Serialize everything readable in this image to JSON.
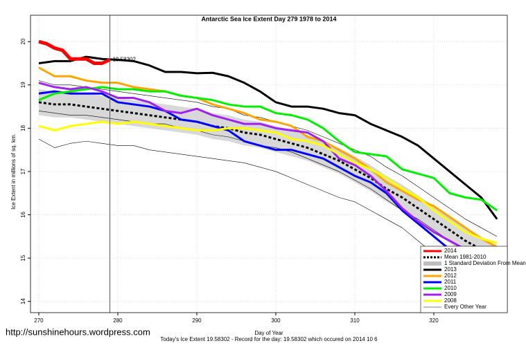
{
  "chart_data": {
    "type": "line",
    "title": "Antarctic Sea Ice Extent Day 279 1978 to 2014",
    "x_label": "Day of Year",
    "y_label": "Ice Extent in millions of sq. km.",
    "footnote": "Today's Ice Extent  19.58302  - Record for the day: 19.58302 which occured on 2014 10 6",
    "watermark": "http://sunshinehours.wordpress.com",
    "annotation": "19.58302",
    "vline": 279,
    "xlim": [
      268.95,
      329.3
    ],
    "ylim": [
      13.74,
      20.61
    ],
    "xticks": [
      270,
      280,
      290,
      300,
      310,
      320
    ],
    "yticks": [
      14,
      15,
      16,
      17,
      18,
      19,
      20
    ],
    "grid": true,
    "legend": "bottom-right",
    "x": [
      270,
      272,
      274,
      276,
      278,
      280,
      282,
      284,
      286,
      288,
      290,
      292,
      294,
      296,
      298,
      300,
      302,
      304,
      306,
      308,
      310,
      312,
      314,
      316,
      318,
      320,
      322,
      324,
      326,
      328
    ],
    "series": [
      {
        "name": "2014",
        "color": "#ff0000",
        "width": 5,
        "x": [
          270,
          271,
          272,
          273,
          274,
          275,
          276,
          277,
          278,
          279
        ],
        "values": [
          20.0,
          19.95,
          19.85,
          19.8,
          19.6,
          19.6,
          19.6,
          19.5,
          19.5,
          19.58302
        ]
      },
      {
        "name": "Mean 1981-2010",
        "color": "#000000",
        "width": 3,
        "dash": true,
        "values": [
          18.6,
          18.55,
          18.55,
          18.5,
          18.45,
          18.4,
          18.35,
          18.3,
          18.25,
          18.2,
          18.15,
          18.05,
          18.0,
          17.9,
          17.85,
          17.75,
          17.65,
          17.55,
          17.4,
          17.25,
          17.05,
          16.85,
          16.6,
          16.4,
          16.15,
          15.9,
          15.65,
          15.4,
          15.2,
          15.0
        ]
      },
      {
        "name": "2013",
        "color": "#000000",
        "width": 3,
        "values": [
          19.5,
          19.55,
          19.55,
          19.65,
          19.6,
          19.58,
          19.55,
          19.45,
          19.3,
          19.3,
          19.27,
          19.28,
          19.2,
          19.05,
          18.85,
          18.6,
          18.5,
          18.5,
          18.45,
          18.35,
          18.3,
          18.1,
          17.95,
          17.8,
          17.6,
          17.3,
          17.0,
          16.7,
          16.4,
          15.9
        ]
      },
      {
        "name": "2012",
        "color": "#ffa500",
        "width": 3,
        "values": [
          19.4,
          19.2,
          19.2,
          19.1,
          19.05,
          19.05,
          18.95,
          18.9,
          18.85,
          18.75,
          18.7,
          18.55,
          18.45,
          18.35,
          18.2,
          18.15,
          18.05,
          17.8,
          17.7,
          17.5,
          17.3,
          17.05,
          16.75,
          16.55,
          16.35,
          16.2,
          15.95,
          15.7,
          15.45,
          15.25
        ]
      },
      {
        "name": "2011",
        "color": "#0000ff",
        "width": 3,
        "values": [
          18.8,
          18.85,
          18.8,
          18.8,
          18.8,
          18.6,
          18.55,
          18.5,
          18.4,
          18.2,
          18.15,
          18.05,
          17.95,
          17.7,
          17.6,
          17.5,
          17.5,
          17.4,
          17.3,
          17.1,
          16.9,
          16.75,
          16.5,
          16.1,
          15.8,
          15.5,
          15.2,
          15.0,
          14.8,
          14.55
        ]
      },
      {
        "name": "2010",
        "color": "#00ee00",
        "width": 3,
        "values": [
          18.65,
          18.8,
          18.85,
          18.9,
          18.95,
          18.9,
          18.9,
          18.85,
          18.85,
          18.75,
          18.7,
          18.65,
          18.55,
          18.5,
          18.5,
          18.35,
          18.3,
          18.2,
          18.0,
          17.7,
          17.45,
          17.4,
          17.35,
          17.05,
          16.95,
          16.85,
          16.5,
          16.4,
          16.35,
          16.1
        ]
      },
      {
        "name": "2009",
        "color": "#a020f0",
        "width": 3,
        "values": [
          19.05,
          18.95,
          18.9,
          18.95,
          18.85,
          18.7,
          18.7,
          18.6,
          18.4,
          18.35,
          18.45,
          18.3,
          18.2,
          18.1,
          18.1,
          18.0,
          17.95,
          17.9,
          17.7,
          17.3,
          17.15,
          16.9,
          16.55,
          16.15,
          15.85,
          15.6,
          15.4,
          15.2,
          15.05,
          14.85
        ]
      },
      {
        "name": "2008",
        "color": "#ffff00",
        "width": 3,
        "values": [
          18.05,
          17.95,
          18.05,
          18.1,
          18.15,
          18.1,
          18.15,
          18.1,
          18.05,
          18.0,
          17.95,
          17.95,
          18.0,
          18.0,
          17.95,
          17.9,
          17.75,
          17.7,
          17.6,
          17.4,
          17.2,
          17.05,
          16.85,
          16.6,
          16.4,
          16.1,
          15.85,
          15.6,
          15.45,
          15.35
        ]
      }
    ],
    "band": {
      "name": "1 Standard Deviation From Mean",
      "color": "#bebebe",
      "upper": [
        18.9,
        18.85,
        18.85,
        18.8,
        18.75,
        18.7,
        18.65,
        18.6,
        18.55,
        18.5,
        18.45,
        18.35,
        18.3,
        18.2,
        18.15,
        18.05,
        17.95,
        17.85,
        17.7,
        17.55,
        17.35,
        17.15,
        16.9,
        16.7,
        16.45,
        16.2,
        15.95,
        15.7,
        15.5,
        15.3
      ],
      "lower": [
        18.3,
        18.25,
        18.25,
        18.2,
        18.15,
        18.1,
        18.05,
        18.0,
        17.95,
        17.9,
        17.85,
        17.75,
        17.7,
        17.6,
        17.55,
        17.45,
        17.35,
        17.25,
        17.1,
        16.95,
        16.75,
        16.55,
        16.3,
        16.1,
        15.85,
        15.6,
        15.35,
        15.1,
        14.9,
        14.7
      ]
    },
    "other_years": {
      "name": "Every Other Year",
      "color": "#000000",
      "lines": [
        [
          17.75,
          17.55,
          17.65,
          17.7,
          17.65,
          17.6,
          17.6,
          17.5,
          17.45,
          17.4,
          17.35,
          17.3,
          17.25,
          17.2,
          17.1,
          17.0,
          16.85,
          16.7,
          16.55,
          16.4,
          16.3,
          16.1,
          15.9,
          15.7,
          15.4,
          15.1,
          14.85,
          14.6,
          14.4,
          14.2
        ],
        [
          19.1,
          19.0,
          19.0,
          18.95,
          18.9,
          18.85,
          18.8,
          18.75,
          18.7,
          18.65,
          18.6,
          18.5,
          18.45,
          18.3,
          18.25,
          18.15,
          18.05,
          17.95,
          17.8,
          17.65,
          17.5,
          17.35,
          17.1,
          16.9,
          16.65,
          16.4,
          16.15,
          15.9,
          15.7,
          15.5
        ],
        [
          18.4,
          18.35,
          18.3,
          18.3,
          18.25,
          18.2,
          18.15,
          18.1,
          18.1,
          18.0,
          17.95,
          17.85,
          17.8,
          17.7,
          17.6,
          17.55,
          17.45,
          17.3,
          17.15,
          17.0,
          16.8,
          16.6,
          16.35,
          16.1,
          15.9,
          15.65,
          15.4,
          15.15,
          14.95,
          14.75
        ]
      ]
    }
  }
}
